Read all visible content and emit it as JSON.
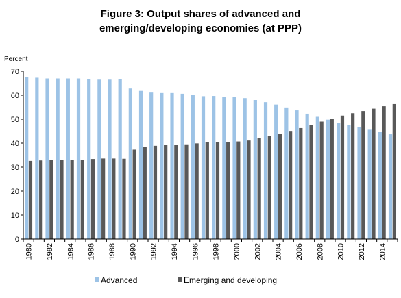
{
  "chart_data": {
    "type": "bar",
    "title_line1": "Figure 3: Output shares of advanced and",
    "title_line2": "emerging/developing economies (at PPP)",
    "ylabel": "Percent",
    "xlabel": "",
    "ylim": [
      0,
      70
    ],
    "yticks": [
      0,
      10,
      20,
      30,
      40,
      50,
      60,
      70
    ],
    "grid": false,
    "legend_position": "bottom",
    "categories": [
      "1980",
      "1981",
      "1982",
      "1983",
      "1984",
      "1985",
      "1986",
      "1987",
      "1988",
      "1989",
      "1990",
      "1991",
      "1992",
      "1993",
      "1994",
      "1995",
      "1996",
      "1997",
      "1998",
      "1999",
      "2000",
      "2001",
      "2002",
      "2003",
      "2004",
      "2005",
      "2006",
      "2007",
      "2008",
      "2009",
      "2010",
      "2011",
      "2012",
      "2013",
      "2014",
      "2015"
    ],
    "category_labels": [
      "1980",
      "",
      "1982",
      "",
      "1984",
      "",
      "1986",
      "",
      "1988",
      "",
      "1990",
      "",
      "1992",
      "",
      "1994",
      "",
      "1996",
      "",
      "1998",
      "",
      "2000",
      "",
      "2002",
      "",
      "2004",
      "",
      "2006",
      "",
      "2008",
      "",
      "2010",
      "",
      "2012",
      "",
      "2014",
      ""
    ],
    "series": [
      {
        "name": "Advanced",
        "color": "#9dc3e6",
        "values": [
          67.6,
          67.3,
          67.0,
          67.0,
          67.0,
          67.0,
          66.7,
          66.5,
          66.5,
          66.6,
          62.8,
          61.8,
          61.1,
          60.9,
          60.9,
          60.6,
          60.2,
          59.6,
          59.7,
          59.4,
          59.2,
          58.8,
          58.0,
          57.1,
          56.1,
          54.9,
          53.7,
          52.3,
          51.0,
          49.8,
          48.5,
          47.5,
          46.6,
          45.6,
          44.6,
          43.7
        ]
      },
      {
        "name": "Emerging and developing",
        "color": "#595959",
        "values": [
          32.6,
          32.8,
          33.1,
          33.1,
          33.1,
          33.1,
          33.4,
          33.6,
          33.6,
          33.5,
          37.3,
          38.3,
          38.9,
          39.2,
          39.2,
          39.5,
          39.9,
          40.4,
          40.3,
          40.5,
          40.7,
          41.1,
          42.0,
          42.9,
          43.9,
          45.1,
          46.3,
          47.7,
          49.0,
          50.2,
          51.5,
          52.5,
          53.4,
          54.4,
          55.4,
          56.3
        ]
      }
    ]
  }
}
